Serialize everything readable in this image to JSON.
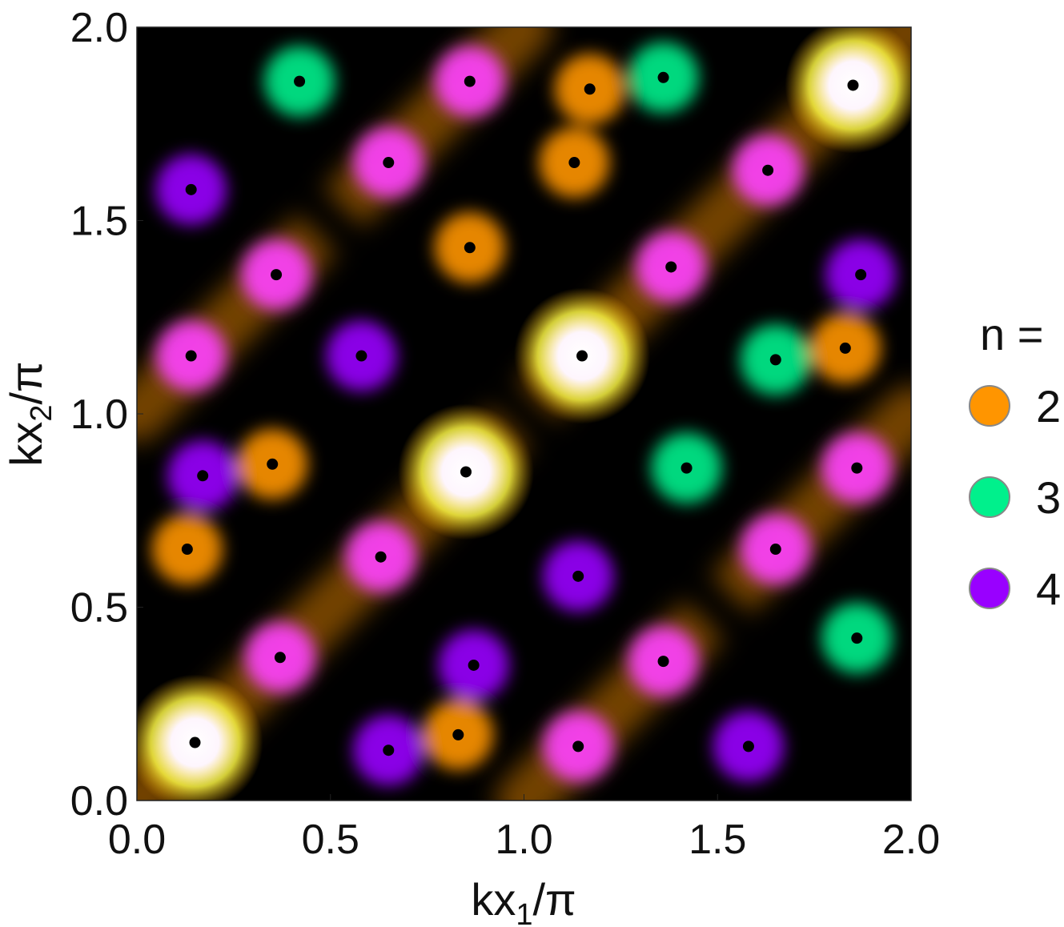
{
  "chart_data": {
    "type": "heatmap",
    "xlabel": "kx",
    "xlabel_sub": "1",
    "xlabel_tail": "/π",
    "ylabel": "kx",
    "ylabel_sub": "2",
    "ylabel_tail": "/π",
    "xlim": [
      0,
      2
    ],
    "ylim": [
      0,
      2
    ],
    "xticks": [
      "0.0",
      "0.5",
      "1.0",
      "1.5",
      "2.0"
    ],
    "yticks": [
      "0.0",
      "0.5",
      "1.0",
      "1.5",
      "2.0"
    ],
    "legend": {
      "title": "n =",
      "placement": "right",
      "entries": [
        {
          "label": "2",
          "color": "#ff9500"
        },
        {
          "label": "3",
          "color": "#00f08c"
        },
        {
          "label": "4",
          "color": "#9900ff"
        }
      ]
    },
    "hotspot_color": "#ffff40",
    "diagonal_color": "#000000",
    "points": [
      [
        0.15,
        0.15
      ],
      [
        0.85,
        0.85
      ],
      [
        1.15,
        1.15
      ],
      [
        1.85,
        1.85
      ],
      [
        0.42,
        1.86
      ],
      [
        0.86,
        1.86
      ],
      [
        1.17,
        1.84
      ],
      [
        1.36,
        1.87
      ],
      [
        0.65,
        1.65
      ],
      [
        1.13,
        1.65
      ],
      [
        1.63,
        1.63
      ],
      [
        0.14,
        1.58
      ],
      [
        0.86,
        1.43
      ],
      [
        1.38,
        1.38
      ],
      [
        1.87,
        1.36
      ],
      [
        0.36,
        1.36
      ],
      [
        0.14,
        1.15
      ],
      [
        0.58,
        1.15
      ],
      [
        1.83,
        1.17
      ],
      [
        1.65,
        1.14
      ],
      [
        0.17,
        0.84
      ],
      [
        0.35,
        0.87
      ],
      [
        1.42,
        0.86
      ],
      [
        1.86,
        0.86
      ],
      [
        0.13,
        0.65
      ],
      [
        0.63,
        0.63
      ],
      [
        1.14,
        0.58
      ],
      [
        1.65,
        0.65
      ],
      [
        0.37,
        0.37
      ],
      [
        0.87,
        0.35
      ],
      [
        1.36,
        0.36
      ],
      [
        1.86,
        0.42
      ],
      [
        0.65,
        0.13
      ],
      [
        0.83,
        0.17
      ],
      [
        1.14,
        0.14
      ],
      [
        1.58,
        0.14
      ]
    ]
  }
}
